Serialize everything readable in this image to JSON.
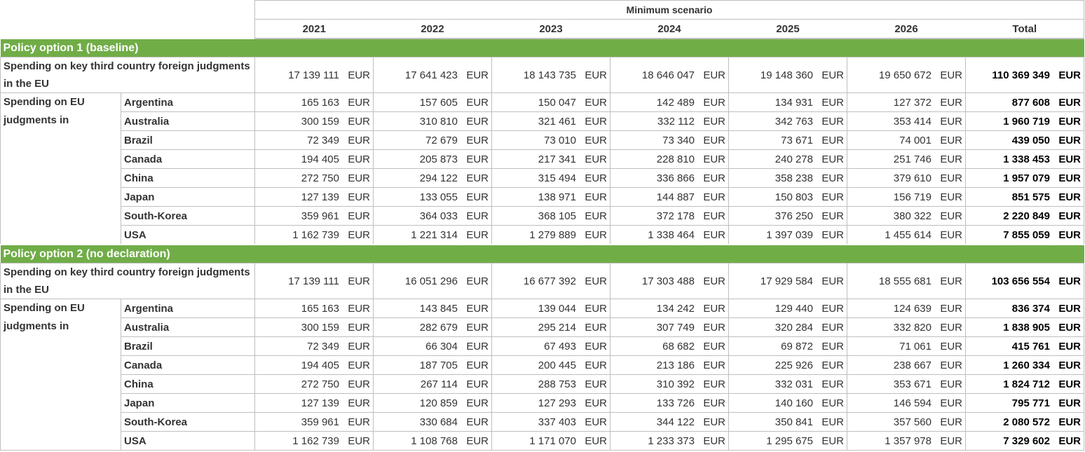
{
  "header": {
    "scenario": "Minimum scenario",
    "columns": [
      "2021",
      "2022",
      "2023",
      "2024",
      "2025",
      "2026",
      "Total"
    ]
  },
  "currency": "EUR",
  "sections": [
    {
      "title": "Policy option 1 (baseline)",
      "key_row": {
        "label": "Spending on key third country foreign judgments in the EU",
        "values": [
          "17 139 111",
          "17 641 423",
          "18 143 735",
          "18 646 047",
          "19 148 360",
          "19 650 672",
          "110 369 349"
        ]
      },
      "group_label": "Spending on EU judgments in",
      "countries": [
        {
          "name": "Argentina",
          "values": [
            "165 163",
            "157 605",
            "150 047",
            "142 489",
            "134 931",
            "127 372",
            "877 608"
          ]
        },
        {
          "name": "Australia",
          "values": [
            "300 159",
            "310 810",
            "321 461",
            "332 112",
            "342 763",
            "353 414",
            "1 960 719"
          ]
        },
        {
          "name": "Brazil",
          "values": [
            "72 349",
            "72 679",
            "73 010",
            "73 340",
            "73 671",
            "74 001",
            "439 050"
          ]
        },
        {
          "name": "Canada",
          "values": [
            "194 405",
            "205 873",
            "217 341",
            "228 810",
            "240 278",
            "251 746",
            "1 338 453"
          ]
        },
        {
          "name": "China",
          "values": [
            "272 750",
            "294 122",
            "315 494",
            "336 866",
            "358 238",
            "379 610",
            "1 957 079"
          ]
        },
        {
          "name": "Japan",
          "values": [
            "127 139",
            "133 055",
            "138 971",
            "144 887",
            "150 803",
            "156 719",
            "851 575"
          ]
        },
        {
          "name": "South-Korea",
          "values": [
            "359 961",
            "364 033",
            "368 105",
            "372 178",
            "376 250",
            "380 322",
            "2 220 849"
          ]
        },
        {
          "name": "USA",
          "values": [
            "1 162 739",
            "1 221 314",
            "1 279 889",
            "1 338 464",
            "1 397 039",
            "1 455 614",
            "7 855 059"
          ]
        }
      ]
    },
    {
      "title": "Policy option 2 (no declaration)",
      "key_row": {
        "label": "Spending on key third country foreign judgments in the EU",
        "values": [
          "17 139 111",
          "16 051 296",
          "16 677 392",
          "17 303 488",
          "17 929 584",
          "18 555 681",
          "103 656 554"
        ]
      },
      "group_label": "Spending on EU judgments in",
      "countries": [
        {
          "name": "Argentina",
          "values": [
            "165 163",
            "143 845",
            "139 044",
            "134 242",
            "129 440",
            "124 639",
            "836 374"
          ]
        },
        {
          "name": "Australia",
          "values": [
            "300 159",
            "282 679",
            "295 214",
            "307 749",
            "320 284",
            "332 820",
            "1 838 905"
          ]
        },
        {
          "name": "Brazil",
          "values": [
            "72 349",
            "66 304",
            "67 493",
            "68 682",
            "69 872",
            "71 061",
            "415 761"
          ]
        },
        {
          "name": "Canada",
          "values": [
            "194 405",
            "187 705",
            "200 445",
            "213 186",
            "225 926",
            "238 667",
            "1 260 334"
          ]
        },
        {
          "name": "China",
          "values": [
            "272 750",
            "267 114",
            "288 753",
            "310 392",
            "332 031",
            "353 671",
            "1 824 712"
          ]
        },
        {
          "name": "Japan",
          "values": [
            "127 139",
            "120 859",
            "127 293",
            "133 726",
            "140 160",
            "146 594",
            "795 771"
          ]
        },
        {
          "name": "South-Korea",
          "values": [
            "359 961",
            "330 684",
            "337 403",
            "344 122",
            "350 841",
            "357 560",
            "2 080 572"
          ]
        },
        {
          "name": "USA",
          "values": [
            "1 162 739",
            "1 108 768",
            "1 171 070",
            "1 233 373",
            "1 295 675",
            "1 357 978",
            "7 329 602"
          ]
        }
      ]
    }
  ]
}
